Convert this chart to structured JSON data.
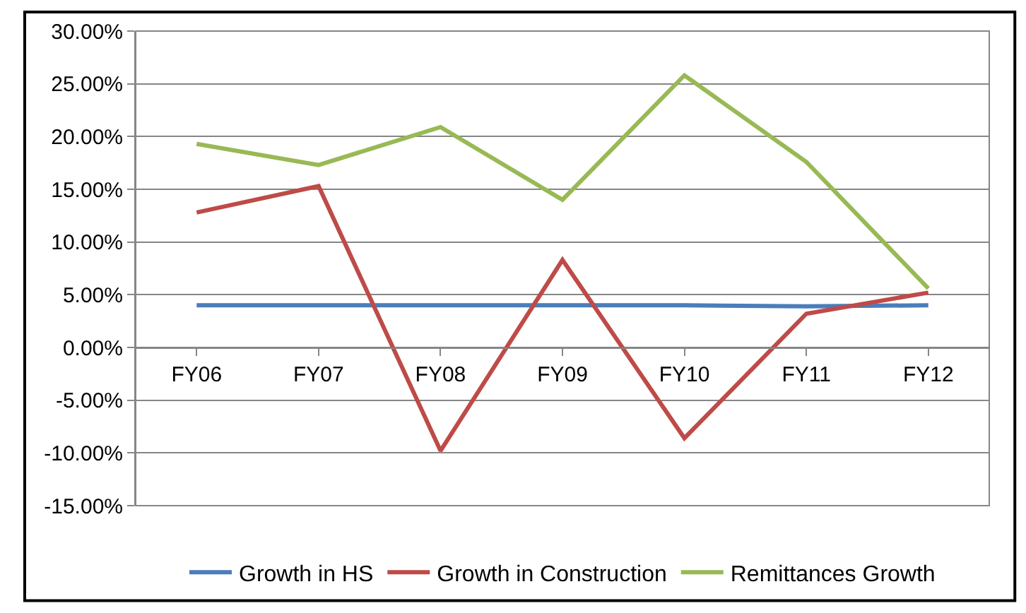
{
  "chart_data": {
    "type": "line",
    "categories": [
      "FY06",
      "FY07",
      "FY08",
      "FY09",
      "FY10",
      "FY11",
      "FY12"
    ],
    "series": [
      {
        "name": "Growth in HS",
        "color": "#4a7ebb",
        "values": [
          4.0,
          4.0,
          4.0,
          4.0,
          4.0,
          3.9,
          4.0
        ]
      },
      {
        "name": "Growth in Construction",
        "color": "#be4b48",
        "values": [
          12.8,
          15.3,
          -9.8,
          8.3,
          -8.6,
          3.2,
          5.2
        ]
      },
      {
        "name": "Remittances Growth",
        "color": "#98b954",
        "values": [
          19.3,
          17.3,
          20.9,
          14.0,
          25.8,
          17.6,
          5.6
        ]
      }
    ],
    "ylim": [
      -15,
      30
    ],
    "yticks": [
      {
        "value": -15,
        "label": "-15.00%"
      },
      {
        "value": -10,
        "label": "-10.00%"
      },
      {
        "value": -5,
        "label": "-5.00%"
      },
      {
        "value": 0,
        "label": "0.00%"
      },
      {
        "value": 5,
        "label": "5.00%"
      },
      {
        "value": 10,
        "label": "10.00%"
      },
      {
        "value": 15,
        "label": "15.00%"
      },
      {
        "value": 20,
        "label": "20.00%"
      },
      {
        "value": 25,
        "label": "25.00%"
      },
      {
        "value": 30,
        "label": "30.00%"
      }
    ],
    "grid": "y",
    "legend": "bottom",
    "marker": "none",
    "line_style": "solid"
  }
}
